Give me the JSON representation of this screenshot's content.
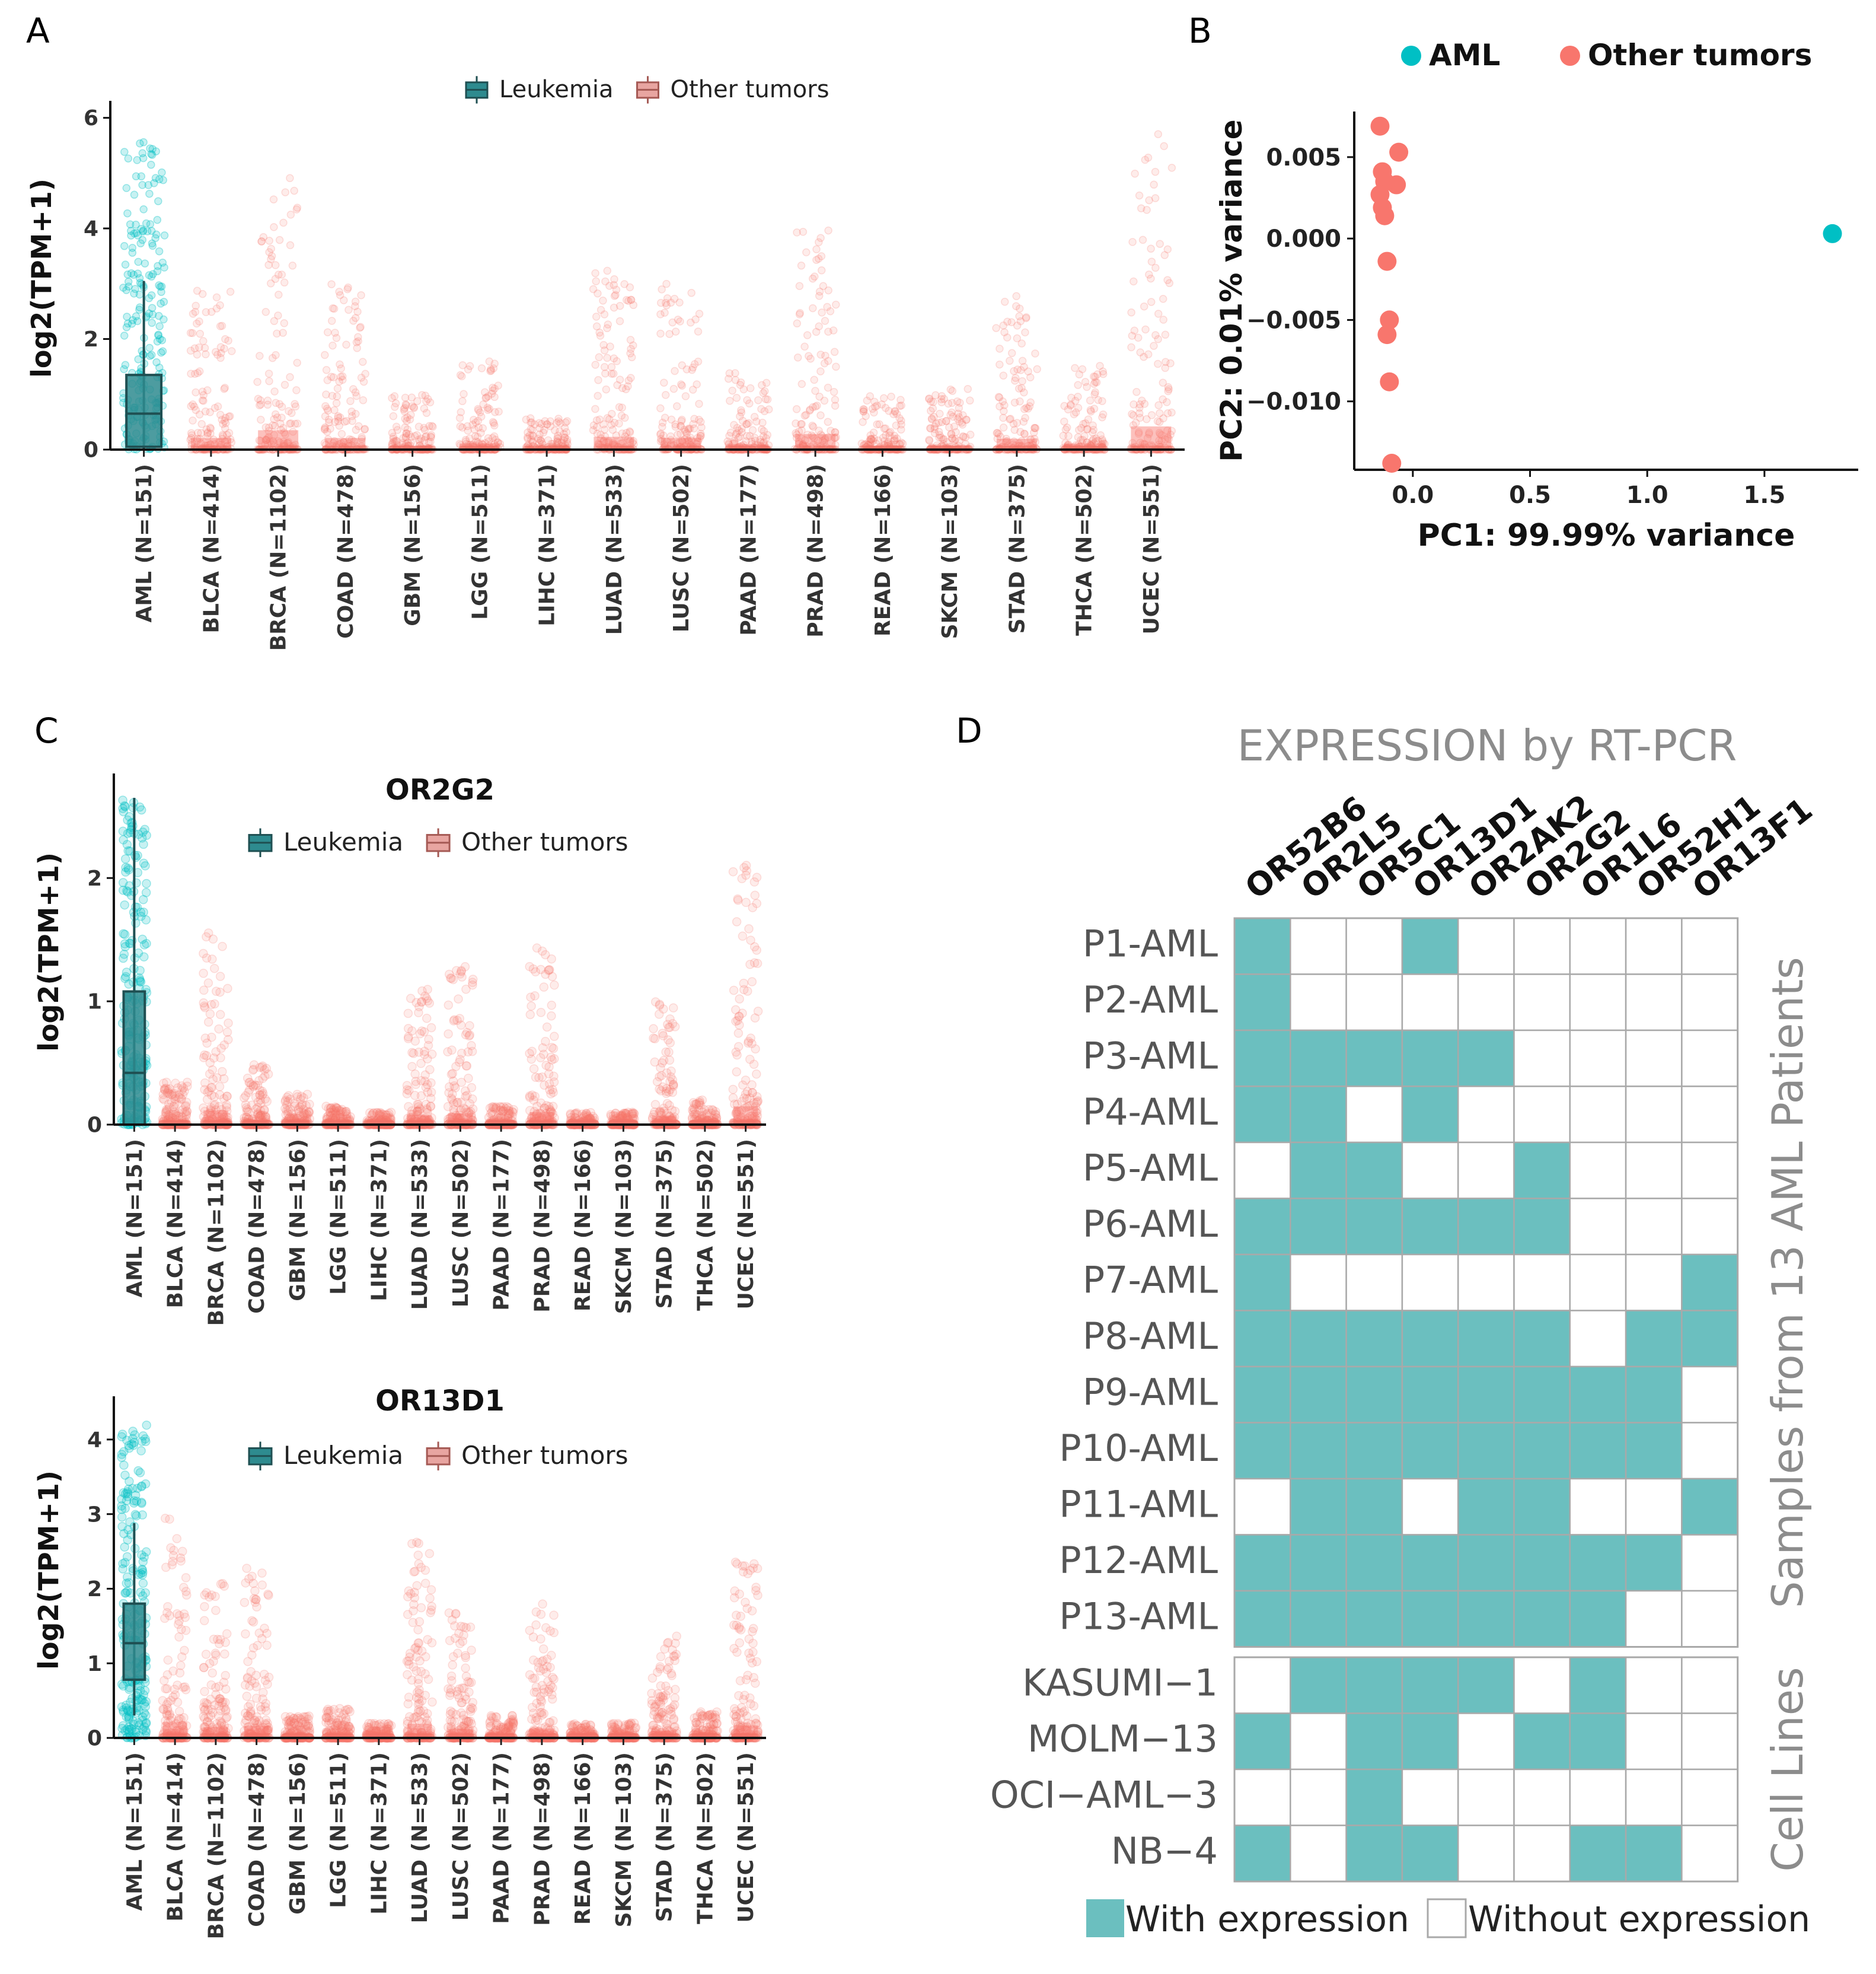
{
  "colors": {
    "leukemia": "#00BFC4",
    "leukemia_box": "#2E8B8F",
    "leukemia_box_line": "#1F4F52",
    "other": "#F8766D",
    "heat_on": "#6BBFBF",
    "heat_off": "#FFFFFF",
    "grid": "#A9A9A9",
    "gray_text": "#8C8C8C"
  },
  "icons": {
    "legend_key_box": "boxplot-key-icon",
    "legend_key_dot": "dot-key-icon"
  },
  "panels": {
    "A": {
      "letter": "A"
    },
    "B": {
      "letter": "B"
    },
    "C": {
      "letter": "C"
    },
    "D": {
      "letter": "D"
    }
  },
  "legend_box": {
    "leukemia": "Leukemia",
    "other": "Other tumors"
  },
  "chart_data": [
    {
      "id": "A",
      "type": "boxplot-jitter",
      "title": "",
      "ylabel": "log2(TPM+1)",
      "ylim": [
        0,
        6.2
      ],
      "yticks": [
        0,
        2,
        4,
        6
      ],
      "categories": [
        "AML (N=151)",
        "BLCA (N=414)",
        "BRCA (N=1102)",
        "COAD (N=478)",
        "GBM (N=156)",
        "LGG (N=511)",
        "LIHC (N=371)",
        "LUAD (N=533)",
        "LUSC (N=502)",
        "PAAD (N=177)",
        "PRAD (N=498)",
        "READ (N=166)",
        "SKCM (N=103)",
        "STAD (N=375)",
        "THCA (N=502)",
        "UCEC (N=551)"
      ],
      "group": [
        "Leukemia",
        "Other tumors",
        "Other tumors",
        "Other tumors",
        "Other tumors",
        "Other tumors",
        "Other tumors",
        "Other tumors",
        "Other tumors",
        "Other tumors",
        "Other tumors",
        "Other tumors",
        "Other tumors",
        "Other tumors",
        "Other tumors",
        "Other tumors"
      ],
      "box": [
        {
          "min": 0,
          "q1": 0.05,
          "median": 0.65,
          "q3": 1.35,
          "max": 3.05
        },
        null,
        null,
        null,
        null,
        null,
        null,
        null,
        null,
        null,
        null,
        null,
        null,
        null,
        null,
        null
      ],
      "spread_max": [
        5.6,
        3.0,
        5.0,
        3.0,
        1.0,
        1.6,
        0.6,
        3.3,
        3.0,
        1.4,
        4.0,
        1.0,
        1.1,
        2.8,
        1.6,
        6.0
      ]
    },
    {
      "id": "B",
      "type": "scatter",
      "title": "",
      "xlabel": "PC1: 99.99% variance",
      "ylabel": "PC2: 0.01% variance",
      "xlim": [
        -0.25,
        1.9
      ],
      "ylim": [
        -0.0142,
        0.0078
      ],
      "xticks": [
        0.0,
        0.5,
        1.0,
        1.5
      ],
      "xtick_labels": [
        "0.0",
        "0.5",
        "1.0",
        "1.5"
      ],
      "yticks": [
        0.005,
        0.0,
        -0.005,
        -0.01
      ],
      "ytick_labels": [
        "0.005",
        "0.000",
        "−0.005",
        "−0.010"
      ],
      "legend": [
        "AML",
        "Other tumors"
      ],
      "series": [
        {
          "name": "AML",
          "points": [
            [
              1.79,
              0.0003
            ]
          ]
        },
        {
          "name": "Other tumors",
          "points": [
            [
              -0.14,
              0.0069
            ],
            [
              -0.06,
              0.0053
            ],
            [
              -0.07,
              0.0033
            ],
            [
              -0.13,
              0.0041
            ],
            [
              -0.12,
              0.0035
            ],
            [
              -0.14,
              0.0027
            ],
            [
              -0.13,
              0.0019
            ],
            [
              -0.12,
              0.0014
            ],
            [
              -0.11,
              -0.0014
            ],
            [
              -0.1,
              -0.005
            ],
            [
              -0.11,
              -0.0059
            ],
            [
              -0.1,
              -0.0088
            ],
            [
              -0.09,
              -0.0138
            ]
          ]
        }
      ]
    },
    {
      "id": "C1",
      "type": "boxplot-jitter",
      "title": "OR2G2",
      "ylabel": "log2(TPM+1)",
      "ylim": [
        0,
        2.8
      ],
      "yticks": [
        0,
        1,
        2
      ],
      "categories": [
        "AML (N=151)",
        "BLCA (N=414)",
        "BRCA (N=1102)",
        "COAD (N=478)",
        "GBM (N=156)",
        "LGG (N=511)",
        "LIHC (N=371)",
        "LUAD (N=533)",
        "LUSC (N=502)",
        "PAAD (N=177)",
        "PRAD (N=498)",
        "READ (N=166)",
        "SKCM (N=103)",
        "STAD (N=375)",
        "THCA (N=502)",
        "UCEC (N=551)"
      ],
      "group": [
        "Leukemia",
        "Other tumors",
        "Other tumors",
        "Other tumors",
        "Other tumors",
        "Other tumors",
        "Other tumors",
        "Other tumors",
        "Other tumors",
        "Other tumors",
        "Other tumors",
        "Other tumors",
        "Other tumors",
        "Other tumors",
        "Other tumors",
        "Other tumors"
      ],
      "box": [
        {
          "min": 0,
          "q1": 0.0,
          "median": 0.42,
          "q3": 1.08,
          "max": 2.65
        },
        null,
        null,
        null,
        null,
        null,
        null,
        null,
        null,
        null,
        null,
        null,
        null,
        null,
        null,
        null
      ],
      "spread_max": [
        2.65,
        0.35,
        1.65,
        0.5,
        0.25,
        0.15,
        0.1,
        1.1,
        1.3,
        0.15,
        1.45,
        0.1,
        0.1,
        1.0,
        0.2,
        2.12
      ]
    },
    {
      "id": "C2",
      "type": "boxplot-jitter",
      "title": "OR13D1",
      "ylabel": "log2(TPM+1)",
      "ylim": [
        0,
        4.5
      ],
      "yticks": [
        0,
        1,
        2,
        3,
        4
      ],
      "categories": [
        "AML (N=151)",
        "BLCA (N=414)",
        "BRCA (N=1102)",
        "COAD (N=478)",
        "GBM (N=156)",
        "LGG (N=511)",
        "LIHC (N=371)",
        "LUAD (N=533)",
        "LUSC (N=502)",
        "PAAD (N=177)",
        "PRAD (N=498)",
        "READ (N=166)",
        "SKCM (N=103)",
        "STAD (N=375)",
        "THCA (N=502)",
        "UCEC (N=551)"
      ],
      "group": [
        "Leukemia",
        "Other tumors",
        "Other tumors",
        "Other tumors",
        "Other tumors",
        "Other tumors",
        "Other tumors",
        "Other tumors",
        "Other tumors",
        "Other tumors",
        "Other tumors",
        "Other tumors",
        "Other tumors",
        "Other tumors",
        "Other tumors",
        "Other tumors"
      ],
      "box": [
        {
          "min": 0.3,
          "q1": 0.78,
          "median": 1.27,
          "q3": 1.8,
          "max": 2.88
        },
        null,
        null,
        null,
        null,
        null,
        null,
        null,
        null,
        null,
        null,
        null,
        null,
        null,
        null,
        null
      ],
      "spread_max": [
        4.2,
        3.0,
        2.1,
        2.3,
        0.3,
        0.4,
        0.2,
        2.7,
        1.7,
        0.3,
        1.8,
        0.2,
        0.2,
        1.4,
        0.35,
        2.4
      ]
    },
    {
      "id": "D",
      "type": "heatmap",
      "title": "EXPRESSION by RT-PCR",
      "columns": [
        "OR52B6",
        "OR2L5",
        "OR5C1",
        "OR13D1",
        "OR2AK2",
        "OR2G2",
        "OR1L6",
        "OR52H1",
        "OR13F1"
      ],
      "row_groups": [
        {
          "label": "Samples from 13 AML Patients",
          "rows": [
            "P1-AML",
            "P2-AML",
            "P3-AML",
            "P4-AML",
            "P5-AML",
            "P6-AML",
            "P7-AML",
            "P8-AML",
            "P9-AML",
            "P10-AML",
            "P11-AML",
            "P12-AML",
            "P13-AML"
          ],
          "values": [
            [
              1,
              0,
              0,
              1,
              0,
              0,
              0,
              0,
              0
            ],
            [
              1,
              0,
              0,
              0,
              0,
              0,
              0,
              0,
              0
            ],
            [
              1,
              1,
              1,
              1,
              1,
              0,
              0,
              0,
              0
            ],
            [
              1,
              1,
              0,
              1,
              0,
              0,
              0,
              0,
              0
            ],
            [
              0,
              1,
              1,
              0,
              0,
              1,
              0,
              0,
              0
            ],
            [
              1,
              1,
              1,
              1,
              1,
              1,
              0,
              0,
              0
            ],
            [
              1,
              0,
              0,
              0,
              0,
              0,
              0,
              0,
              1
            ],
            [
              1,
              1,
              1,
              1,
              1,
              1,
              0,
              1,
              1
            ],
            [
              1,
              1,
              1,
              1,
              1,
              1,
              1,
              1,
              0
            ],
            [
              1,
              1,
              1,
              1,
              1,
              1,
              1,
              1,
              0
            ],
            [
              0,
              1,
              1,
              0,
              1,
              1,
              0,
              0,
              1
            ],
            [
              1,
              1,
              1,
              1,
              1,
              1,
              1,
              1,
              0
            ],
            [
              1,
              1,
              1,
              1,
              1,
              1,
              1,
              0,
              0
            ]
          ]
        },
        {
          "label": "Cell Lines",
          "rows": [
            "KASUMI−1",
            "MOLM−13",
            "OCI−AML−3",
            "NB−4"
          ],
          "values": [
            [
              0,
              1,
              1,
              1,
              1,
              0,
              1,
              0,
              0
            ],
            [
              1,
              0,
              1,
              1,
              0,
              1,
              1,
              0,
              0
            ],
            [
              0,
              0,
              1,
              0,
              0,
              0,
              0,
              0,
              0
            ],
            [
              1,
              0,
              1,
              1,
              0,
              0,
              1,
              1,
              0
            ]
          ]
        }
      ],
      "legend": [
        "With expression",
        "Without expression"
      ]
    }
  ]
}
